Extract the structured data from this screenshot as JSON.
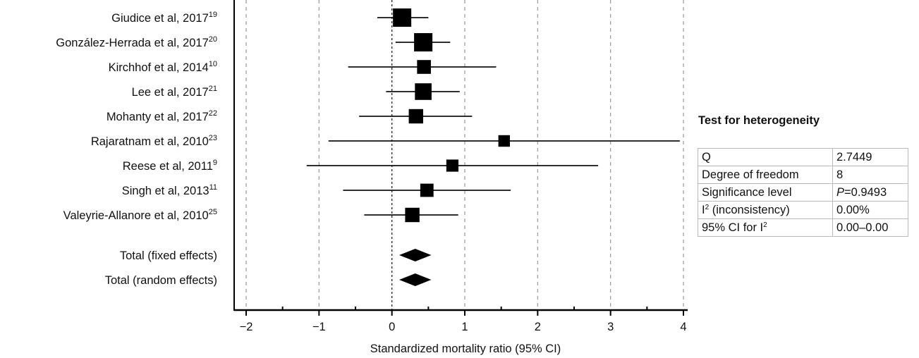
{
  "chart_data": {
    "type": "forest",
    "xlabel": "Standardized mortality ratio (95% CI)",
    "xlim": [
      -2,
      4
    ],
    "ticks": [
      {
        "v": -2,
        "label": "−2"
      },
      {
        "v": -1,
        "label": "−1"
      },
      {
        "v": 0,
        "label": "0"
      },
      {
        "v": 1,
        "label": "1"
      },
      {
        "v": 2,
        "label": "2"
      },
      {
        "v": 3,
        "label": "3"
      },
      {
        "v": 4,
        "label": "4"
      }
    ],
    "minor_ticks": [
      -1.5,
      -0.5,
      0.5,
      1.5,
      2.5,
      3.5
    ],
    "gridlines": [
      -2,
      -1,
      1,
      2,
      3,
      4
    ],
    "reference_line": 0,
    "studies": [
      {
        "label": "Giudice et al, 2017",
        "ref": "19",
        "est": 0.14,
        "lo": -0.2,
        "hi": 0.5,
        "weight": 1.0
      },
      {
        "label": "González-Herrada et al, 2017",
        "ref": "20",
        "est": 0.43,
        "lo": 0.05,
        "hi": 0.8,
        "weight": 1.0
      },
      {
        "label": "Kirchhof et al, 2014",
        "ref": "10",
        "est": 0.44,
        "lo": -0.6,
        "hi": 1.43,
        "weight": 0.6
      },
      {
        "label": "Lee et al, 2017",
        "ref": "21",
        "est": 0.43,
        "lo": -0.08,
        "hi": 0.93,
        "weight": 0.85
      },
      {
        "label": "Mohanty et al, 2017",
        "ref": "22",
        "est": 0.33,
        "lo": -0.45,
        "hi": 1.1,
        "weight": 0.65
      },
      {
        "label": "Rajaratnam et al, 2010",
        "ref": "23",
        "est": 1.54,
        "lo": -0.87,
        "hi": 3.95,
        "weight": 0.4
      },
      {
        "label": "Reese et al, 2011",
        "ref": "9",
        "est": 0.83,
        "lo": -1.17,
        "hi": 2.83,
        "weight": 0.45
      },
      {
        "label": "Singh et al, 2013",
        "ref": "11",
        "est": 0.48,
        "lo": -0.67,
        "hi": 1.63,
        "weight": 0.55
      },
      {
        "label": "Valeyrie-Allanore et al, 2010",
        "ref": "25",
        "est": 0.28,
        "lo": -0.38,
        "hi": 0.91,
        "weight": 0.65
      }
    ],
    "totals": [
      {
        "label": "Total (fixed effects)",
        "est": 0.32,
        "lo": 0.1,
        "hi": 0.54
      },
      {
        "label": "Total (random effects)",
        "est": 0.32,
        "lo": 0.1,
        "hi": 0.54
      }
    ]
  },
  "heterogeneity": {
    "title": "Test for heterogeneity",
    "rows": [
      {
        "label": "Q",
        "value": "2.7449"
      },
      {
        "label": "Degree of freedom",
        "value": "8"
      },
      {
        "label": "Significance level",
        "value_prefix": "P",
        "value": "=0.9493"
      },
      {
        "label_main": "I",
        "label_sup": "2",
        "label_rest": " (inconsistency)",
        "value": "0.00%"
      },
      {
        "label_main": "95% CI for I",
        "label_sup": "2",
        "label_rest": "",
        "value": "0.00–0.00"
      }
    ]
  }
}
